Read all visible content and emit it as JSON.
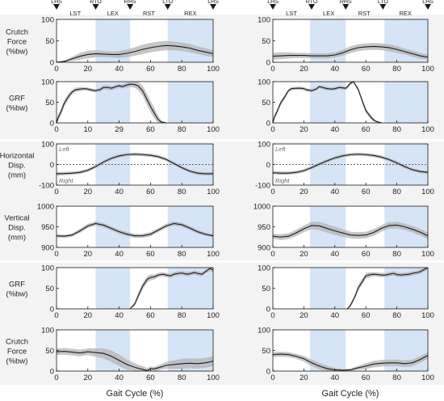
{
  "xlabel": "Gait Cycle (%)",
  "phase_markers": [
    "LHS",
    "RTO",
    "RHS",
    "LTO",
    "LHS"
  ],
  "columns": [
    {
      "phases": [
        "LST",
        "LEX",
        "RST",
        "REX"
      ],
      "gaps": [
        [
          25,
          47
        ],
        [
          71,
          100
        ]
      ]
    },
    {
      "phases": [
        "LST",
        "LEX",
        "RST",
        "REX"
      ],
      "gaps": [
        [
          24,
          47
        ],
        [
          72,
          100
        ]
      ]
    }
  ],
  "rows": [
    {
      "ylabel": [
        "Crutch",
        "Force",
        "(%bw)"
      ],
      "ylim": [
        0,
        100
      ],
      "yticks": [
        "0",
        "50",
        "100"
      ],
      "dashed_zero": false,
      "annot_top": "",
      "annot_bottom": ""
    },
    {
      "ylabel": [
        "GRF",
        "(%bw)"
      ],
      "ylim": [
        0,
        100
      ],
      "yticks": [
        "0",
        "50",
        "100"
      ],
      "dashed_zero": false,
      "annot_top": "",
      "annot_bottom": ""
    },
    {
      "ylabel": [
        "Horizontal",
        "Disp.",
        "(mm)"
      ],
      "ylim": [
        -100,
        100
      ],
      "yticks": [
        "-100",
        "0",
        "100"
      ],
      "dashed_zero": true,
      "annot_top": "Left",
      "annot_bottom": "Right"
    },
    {
      "ylabel": [
        "Vertical",
        "Disp.",
        "(mm)"
      ],
      "ylim": [
        900,
        1000
      ],
      "yticks": [
        "900",
        "950",
        "1000"
      ],
      "dashed_zero": false,
      "annot_top": "",
      "annot_bottom": ""
    },
    {
      "ylabel": [
        "GRF",
        "(%bw)"
      ],
      "ylim": [
        0,
        100
      ],
      "yticks": [
        "0",
        "50",
        "100"
      ],
      "dashed_zero": false,
      "annot_top": "",
      "annot_bottom": ""
    },
    {
      "ylabel": [
        "Crutch",
        "Force",
        "(%bw)"
      ],
      "ylim": [
        0,
        100
      ],
      "yticks": [
        "0",
        "50",
        "100"
      ],
      "dashed_zero": false,
      "annot_top": "",
      "annot_bottom": ""
    }
  ],
  "x_ticks": [
    [
      "0",
      "20",
      "40",
      "60",
      "80",
      "100"
    ],
    [
      "0",
      "20",
      "40",
      "60",
      "80",
      "100"
    ],
    [
      "0",
      "20",
      "40",
      "60",
      "80",
      "100"
    ],
    [
      "0",
      "20",
      "40",
      "60",
      "80",
      "100"
    ],
    [
      "0",
      "20",
      "40",
      "60",
      "80",
      "100"
    ],
    [
      "0",
      "20",
      "40",
      "60",
      "80",
      "100"
    ]
  ],
  "x_ticks_overrides": {
    "1": [
      "0",
      "10",
      "29",
      "60",
      "80",
      "100"
    ]
  },
  "colors": {
    "gap_band": "#d5e4f6",
    "mean_line": "#1a1a1a",
    "sd_band": "#b3b3b3",
    "frame": "#1a1a1a"
  },
  "chart_data": [
    {
      "type": "line",
      "row": 0,
      "col": 0,
      "x": [
        0,
        5,
        10,
        15,
        20,
        25,
        30,
        35,
        40,
        45,
        50,
        55,
        60,
        65,
        70,
        75,
        80,
        85,
        90,
        95,
        100
      ],
      "mean": [
        0,
        2,
        8,
        14,
        18,
        20,
        19,
        18,
        18,
        21,
        25,
        30,
        34,
        37,
        39,
        38,
        36,
        33,
        28,
        24,
        20
      ],
      "sd": [
        1,
        2,
        5,
        8,
        9,
        8,
        7,
        7,
        8,
        9,
        10,
        11,
        11,
        11,
        11,
        10,
        10,
        10,
        9,
        9,
        8
      ]
    },
    {
      "type": "line",
      "row": 0,
      "col": 1,
      "x": [
        0,
        5,
        10,
        15,
        20,
        25,
        30,
        35,
        40,
        45,
        50,
        55,
        60,
        65,
        70,
        75,
        80,
        85,
        90,
        95,
        100
      ],
      "mean": [
        14,
        15,
        16,
        16,
        16,
        15,
        15,
        15,
        17,
        22,
        29,
        34,
        36,
        37,
        36,
        34,
        30,
        25,
        20,
        15,
        12
      ],
      "sd": [
        8,
        8,
        7,
        6,
        6,
        6,
        6,
        6,
        6,
        7,
        8,
        8,
        8,
        8,
        8,
        8,
        8,
        7,
        7,
        7,
        6
      ]
    },
    {
      "type": "line",
      "row": 1,
      "col": 0,
      "x": [
        0,
        1,
        3,
        5,
        8,
        10,
        12,
        15,
        18,
        20,
        22,
        25,
        28,
        30,
        33,
        35,
        38,
        40,
        42,
        45,
        47,
        50,
        52,
        55,
        58,
        60,
        63,
        65,
        67,
        70,
        72,
        75,
        80,
        85,
        90,
        95,
        100
      ],
      "mean": [
        0,
        12,
        28,
        48,
        66,
        75,
        80,
        82,
        83,
        82,
        80,
        78,
        81,
        86,
        86,
        84,
        88,
        90,
        88,
        92,
        94,
        93,
        90,
        78,
        55,
        40,
        20,
        8,
        2,
        0,
        null,
        null,
        null,
        null,
        null,
        null,
        null
      ],
      "sd": [
        8,
        8,
        8,
        8,
        7,
        6,
        5,
        5,
        4,
        4,
        4,
        4,
        5,
        5,
        5,
        5,
        5,
        5,
        5,
        6,
        7,
        8,
        10,
        12,
        14,
        14,
        12,
        8,
        4,
        2,
        null,
        null,
        null,
        null,
        null,
        null,
        null
      ]
    },
    {
      "type": "line",
      "row": 1,
      "col": 1,
      "x": [
        0,
        1,
        3,
        5,
        8,
        10,
        12,
        15,
        18,
        20,
        22,
        25,
        28,
        30,
        32,
        35,
        38,
        40,
        43,
        45,
        47,
        48,
        50,
        52,
        55,
        58,
        60,
        63,
        65,
        67,
        70,
        72,
        75,
        80,
        85,
        90,
        95,
        100
      ],
      "mean": [
        0,
        14,
        30,
        48,
        65,
        78,
        83,
        84,
        84,
        83,
        80,
        78,
        82,
        88,
        86,
        83,
        82,
        83,
        86,
        85,
        84,
        87,
        96,
        100,
        82,
        50,
        30,
        15,
        7,
        3,
        0,
        null,
        null,
        null,
        null,
        null,
        null,
        null
      ],
      "sd": [
        6,
        6,
        6,
        6,
        5,
        4,
        4,
        4,
        4,
        4,
        4,
        4,
        4,
        4,
        4,
        4,
        4,
        4,
        4,
        4,
        4,
        4,
        4,
        4,
        5,
        6,
        6,
        5,
        4,
        3,
        2,
        null,
        null,
        null,
        null,
        null,
        null,
        null
      ]
    },
    {
      "type": "line",
      "row": 2,
      "col": 0,
      "x": [
        0,
        5,
        10,
        15,
        20,
        25,
        30,
        35,
        40,
        45,
        50,
        55,
        60,
        65,
        70,
        75,
        80,
        85,
        90,
        95,
        100
      ],
      "mean": [
        -45,
        -44,
        -42,
        -38,
        -28,
        -10,
        12,
        30,
        42,
        48,
        50,
        48,
        45,
        38,
        25,
        5,
        -15,
        -32,
        -42,
        -45,
        -45
      ],
      "sd": [
        9,
        8,
        8,
        8,
        8,
        8,
        8,
        8,
        8,
        8,
        8,
        8,
        8,
        8,
        8,
        8,
        8,
        8,
        8,
        8,
        8
      ]
    },
    {
      "type": "line",
      "row": 2,
      "col": 1,
      "x": [
        0,
        5,
        10,
        15,
        20,
        25,
        30,
        35,
        40,
        45,
        50,
        55,
        60,
        65,
        70,
        75,
        80,
        85,
        90,
        95,
        100
      ],
      "mean": [
        -40,
        -42,
        -42,
        -38,
        -30,
        -15,
        2,
        18,
        32,
        42,
        48,
        50,
        48,
        44,
        36,
        24,
        8,
        -10,
        -25,
        -34,
        -38
      ],
      "sd": [
        8,
        8,
        8,
        8,
        8,
        8,
        8,
        8,
        8,
        8,
        8,
        8,
        8,
        8,
        8,
        8,
        8,
        8,
        8,
        8,
        8
      ]
    },
    {
      "type": "line",
      "row": 3,
      "col": 0,
      "x": [
        0,
        5,
        10,
        15,
        20,
        25,
        30,
        35,
        40,
        45,
        50,
        55,
        60,
        65,
        70,
        75,
        80,
        85,
        90,
        95,
        100
      ],
      "mean": [
        928,
        927,
        930,
        940,
        952,
        958,
        954,
        946,
        938,
        932,
        928,
        928,
        932,
        942,
        952,
        958,
        955,
        947,
        938,
        932,
        928
      ],
      "sd": [
        4,
        4,
        4,
        5,
        5,
        5,
        5,
        5,
        5,
        5,
        5,
        5,
        5,
        5,
        5,
        5,
        5,
        5,
        5,
        4,
        4
      ]
    },
    {
      "type": "line",
      "row": 3,
      "col": 1,
      "x": [
        0,
        5,
        10,
        15,
        20,
        25,
        30,
        35,
        40,
        45,
        50,
        55,
        60,
        65,
        70,
        75,
        80,
        85,
        90,
        95,
        100
      ],
      "mean": [
        927,
        925,
        927,
        935,
        945,
        953,
        952,
        946,
        940,
        935,
        930,
        929,
        930,
        936,
        946,
        953,
        954,
        950,
        944,
        937,
        928
      ],
      "sd": [
        6,
        7,
        7,
        8,
        8,
        9,
        10,
        10,
        10,
        9,
        8,
        8,
        8,
        8,
        8,
        8,
        8,
        8,
        8,
        8,
        8
      ]
    },
    {
      "type": "line",
      "row": 4,
      "col": 0,
      "x": [
        0,
        5,
        10,
        15,
        20,
        25,
        30,
        35,
        40,
        45,
        47,
        50,
        52,
        55,
        58,
        60,
        63,
        65,
        68,
        70,
        73,
        75,
        78,
        80,
        83,
        85,
        88,
        90,
        93,
        95,
        98,
        100
      ],
      "mean": [
        null,
        null,
        null,
        null,
        null,
        null,
        null,
        null,
        null,
        null,
        0,
        12,
        30,
        55,
        72,
        76,
        78,
        82,
        84,
        82,
        80,
        84,
        86,
        87,
        84,
        85,
        88,
        86,
        84,
        90,
        98,
        94
      ],
      "sd": [
        null,
        null,
        null,
        null,
        null,
        null,
        null,
        null,
        null,
        null,
        2,
        5,
        7,
        8,
        8,
        7,
        6,
        5,
        5,
        5,
        5,
        5,
        5,
        5,
        5,
        5,
        5,
        5,
        5,
        5,
        6,
        6
      ]
    },
    {
      "type": "line",
      "row": 4,
      "col": 1,
      "x": [
        0,
        5,
        10,
        15,
        20,
        25,
        30,
        35,
        40,
        45,
        48,
        50,
        53,
        55,
        58,
        60,
        63,
        65,
        68,
        70,
        73,
        75,
        78,
        80,
        83,
        85,
        88,
        90,
        93,
        95,
        98,
        100
      ],
      "mean": [
        null,
        null,
        null,
        null,
        null,
        null,
        null,
        null,
        null,
        null,
        0,
        8,
        30,
        50,
        68,
        80,
        83,
        84,
        83,
        82,
        82,
        84,
        86,
        83,
        82,
        83,
        84,
        86,
        88,
        90,
        96,
        100
      ],
      "sd": [
        null,
        null,
        null,
        null,
        null,
        null,
        null,
        null,
        null,
        null,
        2,
        4,
        6,
        7,
        7,
        7,
        6,
        5,
        5,
        5,
        5,
        5,
        5,
        5,
        5,
        5,
        5,
        5,
        5,
        5,
        5,
        5
      ]
    },
    {
      "type": "line",
      "row": 5,
      "col": 0,
      "x": [
        0,
        5,
        10,
        15,
        20,
        25,
        30,
        35,
        40,
        45,
        50,
        55,
        58,
        60,
        62,
        65,
        70,
        75,
        80,
        85,
        90,
        95,
        100
      ],
      "mean": [
        47,
        48,
        46,
        44,
        47,
        45,
        43,
        36,
        26,
        16,
        9,
        4,
        1,
        6,
        5,
        8,
        14,
        16,
        18,
        19,
        18,
        20,
        24
      ],
      "sd": [
        8,
        8,
        8,
        8,
        8,
        10,
        12,
        14,
        14,
        12,
        10,
        8,
        6,
        5,
        5,
        6,
        8,
        10,
        12,
        12,
        12,
        12,
        12
      ]
    },
    {
      "type": "line",
      "row": 5,
      "col": 1,
      "x": [
        0,
        5,
        10,
        15,
        20,
        25,
        30,
        35,
        40,
        45,
        50,
        55,
        60,
        65,
        70,
        75,
        80,
        85,
        90,
        95,
        100
      ],
      "mean": [
        40,
        41,
        40,
        36,
        30,
        20,
        12,
        6,
        3,
        2,
        3,
        8,
        12,
        17,
        19,
        20,
        20,
        18,
        20,
        28,
        38
      ],
      "sd": [
        6,
        6,
        6,
        6,
        7,
        8,
        8,
        7,
        5,
        3,
        3,
        5,
        7,
        8,
        8,
        8,
        8,
        8,
        8,
        8,
        8
      ]
    }
  ]
}
